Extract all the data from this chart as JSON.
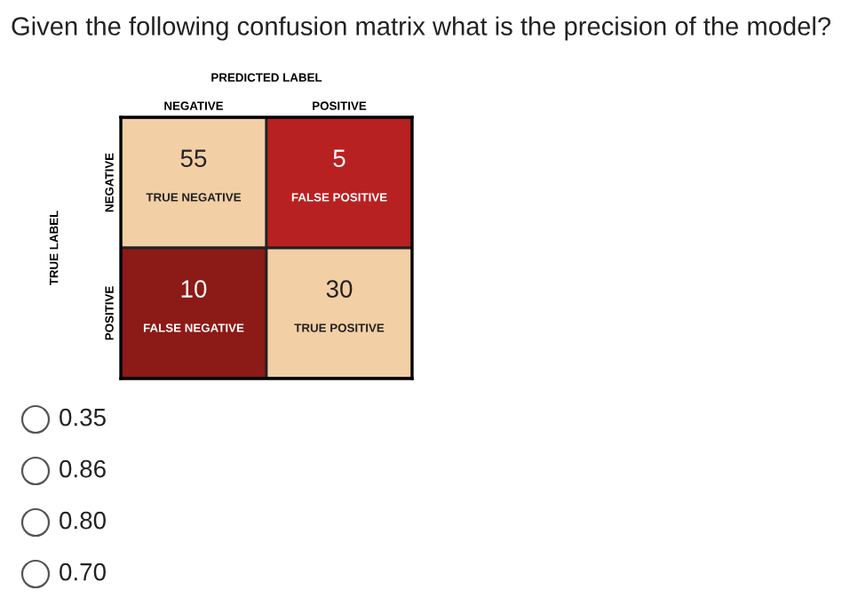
{
  "chart_data": {
    "type": "heatmap",
    "title": "Given the following confusion matrix what is the precision of the model?",
    "xlabel": "PREDICTED LABEL",
    "ylabel": "TRUE LABEL",
    "categories": [
      "NEGATIVE",
      "POSITIVE"
    ],
    "y_categories": [
      "NEGATIVE",
      "POSITIVE"
    ],
    "cells": [
      [
        55,
        5
      ],
      [
        10,
        30
      ]
    ],
    "colors": [
      [
        "#f3cfa6",
        "#b82121"
      ],
      [
        "#8c1a16",
        "#f3cfa6"
      ]
    ],
    "data_labels": true,
    "annotations": [
      "TRUE NEGATIVE",
      "FALSE POSITIVE",
      "FALSE NEGATIVE",
      "TRUE POSITIVE",
      "0.35",
      "0.86",
      "0.80",
      "0.70"
    ]
  }
}
